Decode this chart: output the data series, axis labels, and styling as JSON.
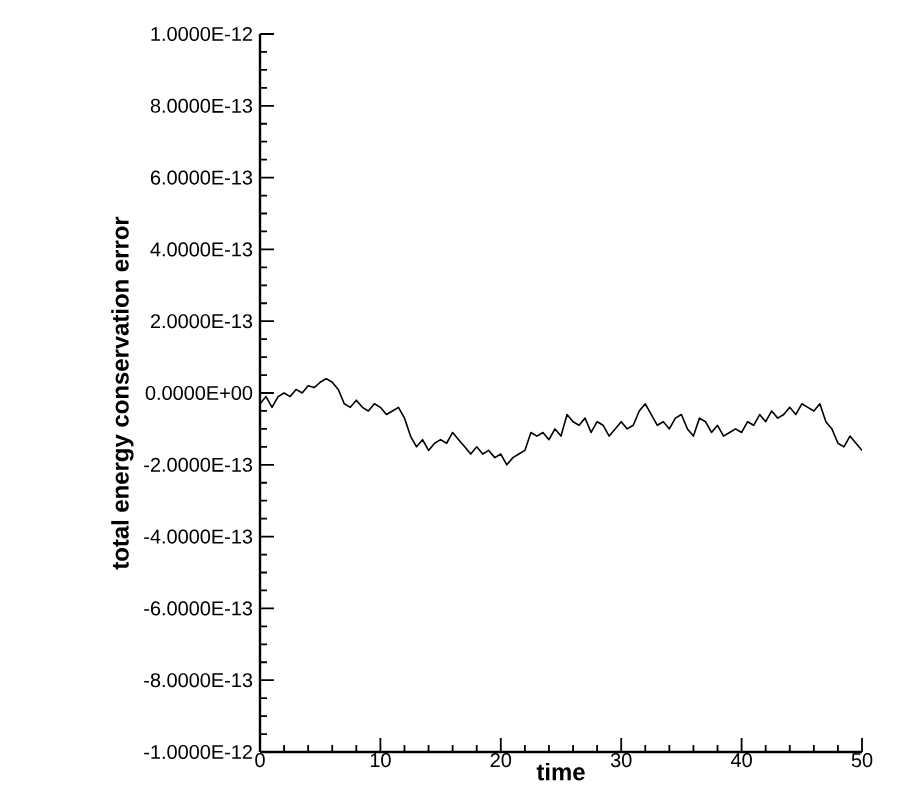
{
  "chart_data": {
    "type": "line",
    "xlabel": "time",
    "ylabel": "total energy conservation error",
    "x": [
      0,
      0.5,
      1,
      1.5,
      2,
      2.5,
      3,
      3.5,
      4,
      4.5,
      5,
      5.5,
      6,
      6.5,
      7,
      7.5,
      8,
      8.5,
      9,
      9.5,
      10,
      10.5,
      11,
      11.5,
      12,
      12.5,
      13,
      13.5,
      14,
      14.5,
      15,
      15.5,
      16,
      16.5,
      17,
      17.5,
      18,
      18.5,
      19,
      19.5,
      20,
      20.5,
      21,
      21.5,
      22,
      22.5,
      23,
      23.5,
      24,
      24.5,
      25,
      25.5,
      26,
      26.5,
      27,
      27.5,
      28,
      28.5,
      29,
      29.5,
      30,
      30.5,
      31,
      31.5,
      32,
      32.5,
      33,
      33.5,
      34,
      34.5,
      35,
      35.5,
      36,
      36.5,
      37,
      37.5,
      38,
      38.5,
      39,
      39.5,
      40,
      40.5,
      41,
      41.5,
      42,
      42.5,
      43,
      43.5,
      44,
      44.5,
      45,
      45.5,
      46,
      46.5,
      47,
      47.5,
      48,
      48.5,
      49,
      49.5,
      50
    ],
    "series": [
      {
        "color": "#000000",
        "values": [
          -3e-14,
          -1e-14,
          -4e-14,
          -1e-14,
          0,
          -1e-14,
          1e-14,
          0,
          2e-14,
          1.5e-14,
          3e-14,
          4e-14,
          3e-14,
          1e-14,
          -3e-14,
          -4e-14,
          -2e-14,
          -4e-14,
          -5e-14,
          -3e-14,
          -4e-14,
          -6e-14,
          -5e-14,
          -4e-14,
          -7e-14,
          -1.2e-13,
          -1.5e-13,
          -1.3e-13,
          -1.6e-13,
          -1.4e-13,
          -1.3e-13,
          -1.4e-13,
          -1.1e-13,
          -1.3e-13,
          -1.5e-13,
          -1.7e-13,
          -1.5e-13,
          -1.7e-13,
          -1.6e-13,
          -1.8e-13,
          -1.7e-13,
          -2e-13,
          -1.8e-13,
          -1.7e-13,
          -1.6e-13,
          -1.1e-13,
          -1.2e-13,
          -1.1e-13,
          -1.3e-13,
          -1e-13,
          -1.2e-13,
          -6e-14,
          -8e-14,
          -9e-14,
          -7e-14,
          -1.1e-13,
          -8e-14,
          -9e-14,
          -1.2e-13,
          -1e-13,
          -8e-14,
          -1e-13,
          -9e-14,
          -5e-14,
          -3e-14,
          -6e-14,
          -9e-14,
          -8e-14,
          -1e-13,
          -7e-14,
          -6e-14,
          -1e-13,
          -1.2e-13,
          -7e-14,
          -8e-14,
          -1.1e-13,
          -9e-14,
          -1.2e-13,
          -1.1e-13,
          -1e-13,
          -1.1e-13,
          -8e-14,
          -9e-14,
          -6e-14,
          -8e-14,
          -5e-14,
          -7e-14,
          -6e-14,
          -4e-14,
          -6e-14,
          -3e-14,
          -4e-14,
          -5e-14,
          -3e-14,
          -8e-14,
          -1e-13,
          -1.4e-13,
          -1.5e-13,
          -1.2e-13,
          -1.4e-13,
          -1.6e-13
        ]
      }
    ],
    "xlim": [
      0,
      50
    ],
    "xticks": [
      0,
      10,
      20,
      30,
      40,
      50
    ],
    "ylim": [
      -1e-12,
      1e-12
    ],
    "yticks": [
      {
        "value": -1e-12,
        "label": "-1.0000E-12"
      },
      {
        "value": -8e-13,
        "label": "-8.0000E-13"
      },
      {
        "value": -6e-13,
        "label": "-6.0000E-13"
      },
      {
        "value": -4e-13,
        "label": "-4.0000E-13"
      },
      {
        "value": -2e-13,
        "label": "-2.0000E-13"
      },
      {
        "value": 0,
        "label": "0.0000E+00"
      },
      {
        "value": 2e-13,
        "label": "2.0000E-13"
      },
      {
        "value": 4e-13,
        "label": "4.0000E-13"
      },
      {
        "value": 6e-13,
        "label": "6.0000E-13"
      },
      {
        "value": 8e-13,
        "label": "8.0000E-13"
      },
      {
        "value": 1e-12,
        "label": "1.0000E-12"
      }
    ],
    "grid": false,
    "marker": "none",
    "line_style": "solid"
  }
}
